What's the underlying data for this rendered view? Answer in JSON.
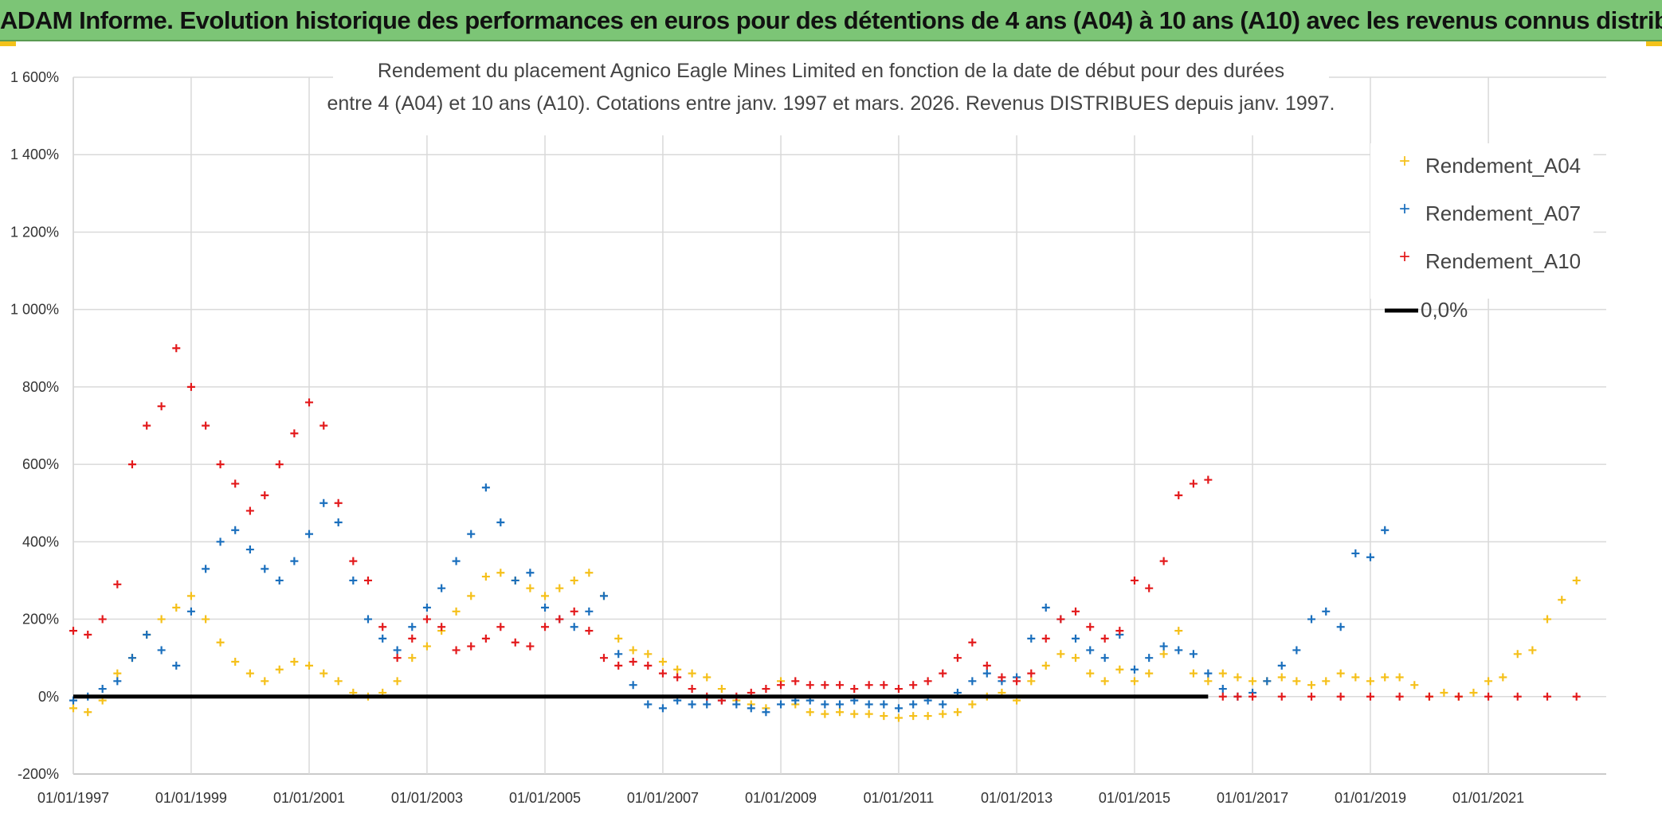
{
  "banner": {
    "title": "ADAM Informe. Evolution historique des performances en euros pour des détentions de 4 ans (A04) à 10 ans (A10) avec les revenus connus distribués"
  },
  "chart_data": {
    "type": "scatter",
    "title_line1": "Rendement du placement Agnico Eagle Mines Limited en fonction de la date de début pour des durées",
    "title_line2": "entre 4 (A04) et 10 ans (A10). Cotations entre janv. 1997 et mars. 2026. Revenus DISTRIBUES depuis janv. 1997.",
    "xlabel": "",
    "ylabel": "",
    "xlim": [
      "1997-01-01",
      "2023-01-01"
    ],
    "ylim": [
      -200,
      1600
    ],
    "x_ticks": [
      "01/01/1997",
      "01/01/1999",
      "01/01/2001",
      "01/01/2003",
      "01/01/2005",
      "01/01/2007",
      "01/01/2009",
      "01/01/2011",
      "01/01/2013",
      "01/01/2015",
      "01/01/2017",
      "01/01/2019",
      "01/01/2021"
    ],
    "y_ticks": [
      "-200%",
      "0%",
      "200%",
      "400%",
      "600%",
      "800%",
      "1 000%",
      "1 200%",
      "1 400%",
      "1 600%"
    ],
    "grid": true,
    "legend_position": "top-right",
    "series": [
      {
        "name": "Rendement_A04",
        "color": "#f5c01a",
        "marker": "plus",
        "x": [
          "1997-01-01",
          "1997-04-01",
          "1997-07-01",
          "1997-10-01",
          "1998-01-01",
          "1998-04-01",
          "1998-07-01",
          "1998-10-01",
          "1999-01-01",
          "1999-04-01",
          "1999-07-01",
          "1999-10-01",
          "2000-01-01",
          "2000-04-01",
          "2000-07-01",
          "2000-10-01",
          "2001-01-01",
          "2001-04-01",
          "2001-07-01",
          "2001-10-01",
          "2002-01-01",
          "2002-04-01",
          "2002-07-01",
          "2002-10-01",
          "2003-01-01",
          "2003-04-01",
          "2003-07-01",
          "2003-10-01",
          "2004-01-01",
          "2004-04-01",
          "2004-07-01",
          "2004-10-01",
          "2005-01-01",
          "2005-04-01",
          "2005-07-01",
          "2005-10-01",
          "2006-01-01",
          "2006-04-01",
          "2006-07-01",
          "2006-10-01",
          "2007-01-01",
          "2007-04-01",
          "2007-07-01",
          "2007-10-01",
          "2008-01-01",
          "2008-04-01",
          "2008-07-01",
          "2008-10-01",
          "2009-01-01",
          "2009-04-01",
          "2009-07-01",
          "2009-10-01",
          "2010-01-01",
          "2010-04-01",
          "2010-07-01",
          "2010-10-01",
          "2011-01-01",
          "2011-04-01",
          "2011-07-01",
          "2011-10-01",
          "2012-01-01",
          "2012-04-01",
          "2012-07-01",
          "2012-10-01",
          "2013-01-01",
          "2013-04-01",
          "2013-07-01",
          "2013-10-01",
          "2014-01-01",
          "2014-04-01",
          "2014-07-01",
          "2014-10-01",
          "2015-01-01",
          "2015-04-01",
          "2015-07-01",
          "2015-10-01",
          "2016-01-01",
          "2016-04-01",
          "2016-07-01",
          "2016-10-01",
          "2017-01-01",
          "2017-04-01",
          "2017-07-01",
          "2017-10-01",
          "2018-01-01",
          "2018-04-01",
          "2018-07-01",
          "2018-10-01",
          "2019-01-01",
          "2019-04-01",
          "2019-07-01",
          "2019-10-01",
          "2020-01-01",
          "2020-04-01",
          "2020-07-01",
          "2020-10-01",
          "2021-01-01",
          "2021-04-01",
          "2021-07-01",
          "2021-10-01",
          "2022-01-01",
          "2022-04-01",
          "2022-07-01"
        ],
        "y": [
          -30,
          -40,
          -10,
          60,
          100,
          160,
          200,
          230,
          260,
          200,
          140,
          90,
          60,
          40,
          70,
          90,
          80,
          60,
          40,
          10,
          0,
          10,
          40,
          100,
          130,
          170,
          220,
          260,
          310,
          320,
          300,
          280,
          260,
          280,
          300,
          320,
          260,
          150,
          120,
          110,
          90,
          70,
          60,
          50,
          20,
          -10,
          -20,
          -30,
          40,
          -20,
          -40,
          -45,
          -40,
          -45,
          -45,
          -50,
          -55,
          -50,
          -50,
          -45,
          -40,
          -20,
          0,
          10,
          -10,
          40,
          80,
          110,
          100,
          60,
          40,
          70,
          40,
          60,
          110,
          170,
          60,
          40,
          60,
          50,
          40,
          40,
          50,
          40,
          30,
          40,
          60,
          50,
          40,
          50,
          50,
          30,
          0,
          10,
          0,
          10,
          40,
          50,
          110,
          120,
          200,
          250,
          300
        ]
      },
      {
        "name": "Rendement_A07",
        "color": "#1a6fbd",
        "marker": "plus",
        "x": [
          "1997-01-01",
          "1997-04-01",
          "1997-07-01",
          "1997-10-01",
          "1998-01-01",
          "1998-04-01",
          "1998-07-01",
          "1998-10-01",
          "1999-01-01",
          "1999-04-01",
          "1999-07-01",
          "1999-10-01",
          "2000-01-01",
          "2000-04-01",
          "2000-07-01",
          "2000-10-01",
          "2001-01-01",
          "2001-04-01",
          "2001-07-01",
          "2001-10-01",
          "2002-01-01",
          "2002-04-01",
          "2002-07-01",
          "2002-10-01",
          "2003-01-01",
          "2003-04-01",
          "2003-07-01",
          "2003-10-01",
          "2004-01-01",
          "2004-04-01",
          "2004-07-01",
          "2004-10-01",
          "2005-01-01",
          "2005-04-01",
          "2005-07-01",
          "2005-10-01",
          "2006-01-01",
          "2006-04-01",
          "2006-07-01",
          "2006-10-01",
          "2007-01-01",
          "2007-04-01",
          "2007-07-01",
          "2007-10-01",
          "2008-01-01",
          "2008-04-01",
          "2008-07-01",
          "2008-10-01",
          "2009-01-01",
          "2009-04-01",
          "2009-07-01",
          "2009-10-01",
          "2010-01-01",
          "2010-04-01",
          "2010-07-01",
          "2010-10-01",
          "2011-01-01",
          "2011-04-01",
          "2011-07-01",
          "2011-10-01",
          "2012-01-01",
          "2012-04-01",
          "2012-07-01",
          "2012-10-01",
          "2013-01-01",
          "2013-04-01",
          "2013-07-01",
          "2013-10-01",
          "2014-01-01",
          "2014-04-01",
          "2014-07-01",
          "2014-10-01",
          "2015-01-01",
          "2015-04-01",
          "2015-07-01",
          "2015-10-01",
          "2016-01-01",
          "2016-04-01",
          "2016-07-01",
          "2016-10-01",
          "2017-01-01",
          "2017-04-01",
          "2017-07-01",
          "2017-10-01",
          "2018-01-01",
          "2018-04-01",
          "2018-07-01",
          "2018-10-01",
          "2019-01-01",
          "2019-04-01"
        ],
        "y": [
          -10,
          0,
          20,
          40,
          100,
          160,
          120,
          80,
          220,
          330,
          400,
          430,
          380,
          330,
          300,
          350,
          420,
          500,
          450,
          300,
          200,
          150,
          120,
          180,
          230,
          280,
          350,
          420,
          540,
          450,
          300,
          320,
          230,
          200,
          180,
          220,
          260,
          110,
          30,
          -20,
          -30,
          -10,
          -20,
          -20,
          -10,
          -20,
          -30,
          -40,
          -20,
          -10,
          -10,
          -20,
          -20,
          -10,
          -20,
          -20,
          -30,
          -20,
          -10,
          -20,
          10,
          40,
          60,
          40,
          50,
          150,
          230,
          200,
          150,
          120,
          100,
          160,
          70,
          100,
          130,
          120,
          110,
          60,
          20,
          0,
          10,
          40,
          80,
          120,
          200,
          220,
          180,
          370,
          360,
          430
        ]
      },
      {
        "name": "Rendement_A10",
        "color": "#e31a1c",
        "marker": "plus",
        "x": [
          "1997-01-01",
          "1997-04-01",
          "1997-07-01",
          "1997-10-01",
          "1998-01-01",
          "1998-04-01",
          "1998-07-01",
          "1998-10-01",
          "1999-01-01",
          "1999-04-01",
          "1999-07-01",
          "1999-10-01",
          "2000-01-01",
          "2000-04-01",
          "2000-07-01",
          "2000-10-01",
          "2001-01-01",
          "2001-04-01",
          "2001-07-01",
          "2001-10-01",
          "2002-01-01",
          "2002-04-01",
          "2002-07-01",
          "2002-10-01",
          "2003-01-01",
          "2003-04-01",
          "2003-07-01",
          "2003-10-01",
          "2004-01-01",
          "2004-04-01",
          "2004-07-01",
          "2004-10-01",
          "2005-01-01",
          "2005-04-01",
          "2005-07-01",
          "2005-10-01",
          "2006-01-01",
          "2006-04-01",
          "2006-07-01",
          "2006-10-01",
          "2007-01-01",
          "2007-04-01",
          "2007-07-01",
          "2007-10-01",
          "2008-01-01",
          "2008-04-01",
          "2008-07-01",
          "2008-10-01",
          "2009-01-01",
          "2009-04-01",
          "2009-07-01",
          "2009-10-01",
          "2010-01-01",
          "2010-04-01",
          "2010-07-01",
          "2010-10-01",
          "2011-01-01",
          "2011-04-01",
          "2011-07-01",
          "2011-10-01",
          "2012-01-01",
          "2012-04-01",
          "2012-07-01",
          "2012-10-01",
          "2013-01-01",
          "2013-04-01",
          "2013-07-01",
          "2013-10-01",
          "2014-01-01",
          "2014-04-01",
          "2014-07-01",
          "2014-10-01",
          "2015-01-01",
          "2015-04-01",
          "2015-07-01",
          "2015-10-01",
          "2016-01-01",
          "2016-04-01",
          "2016-07-01",
          "2016-10-01",
          "2017-01-01",
          "2017-07-01",
          "2018-01-01",
          "2018-07-01",
          "2019-01-01",
          "2019-07-01",
          "2020-01-01",
          "2020-07-01",
          "2021-01-01",
          "2021-07-01",
          "2022-01-01",
          "2022-07-01"
        ],
        "y": [
          170,
          160,
          200,
          290,
          600,
          700,
          750,
          900,
          800,
          700,
          600,
          550,
          480,
          520,
          600,
          680,
          760,
          700,
          500,
          350,
          300,
          180,
          100,
          150,
          200,
          180,
          120,
          130,
          150,
          180,
          140,
          130,
          180,
          200,
          220,
          170,
          100,
          80,
          90,
          80,
          60,
          50,
          20,
          0,
          -10,
          0,
          10,
          20,
          30,
          40,
          30,
          30,
          30,
          20,
          30,
          30,
          20,
          30,
          40,
          60,
          100,
          140,
          80,
          50,
          40,
          60,
          150,
          200,
          220,
          180,
          150,
          170,
          300,
          280,
          350,
          520,
          550,
          560,
          0,
          0,
          0,
          0,
          0,
          0,
          0,
          0,
          0,
          0,
          0,
          0,
          0,
          0
        ]
      },
      {
        "name": "0,0%",
        "color": "#000000",
        "marker": "line",
        "x": [
          "1997-01-01",
          "2016-04-01"
        ],
        "y": [
          0,
          0
        ]
      }
    ]
  },
  "legend": {
    "a04": "Rendement_A04",
    "a07": "Rendement_A07",
    "a10": "Rendement_A10",
    "zero": "0,0%"
  }
}
